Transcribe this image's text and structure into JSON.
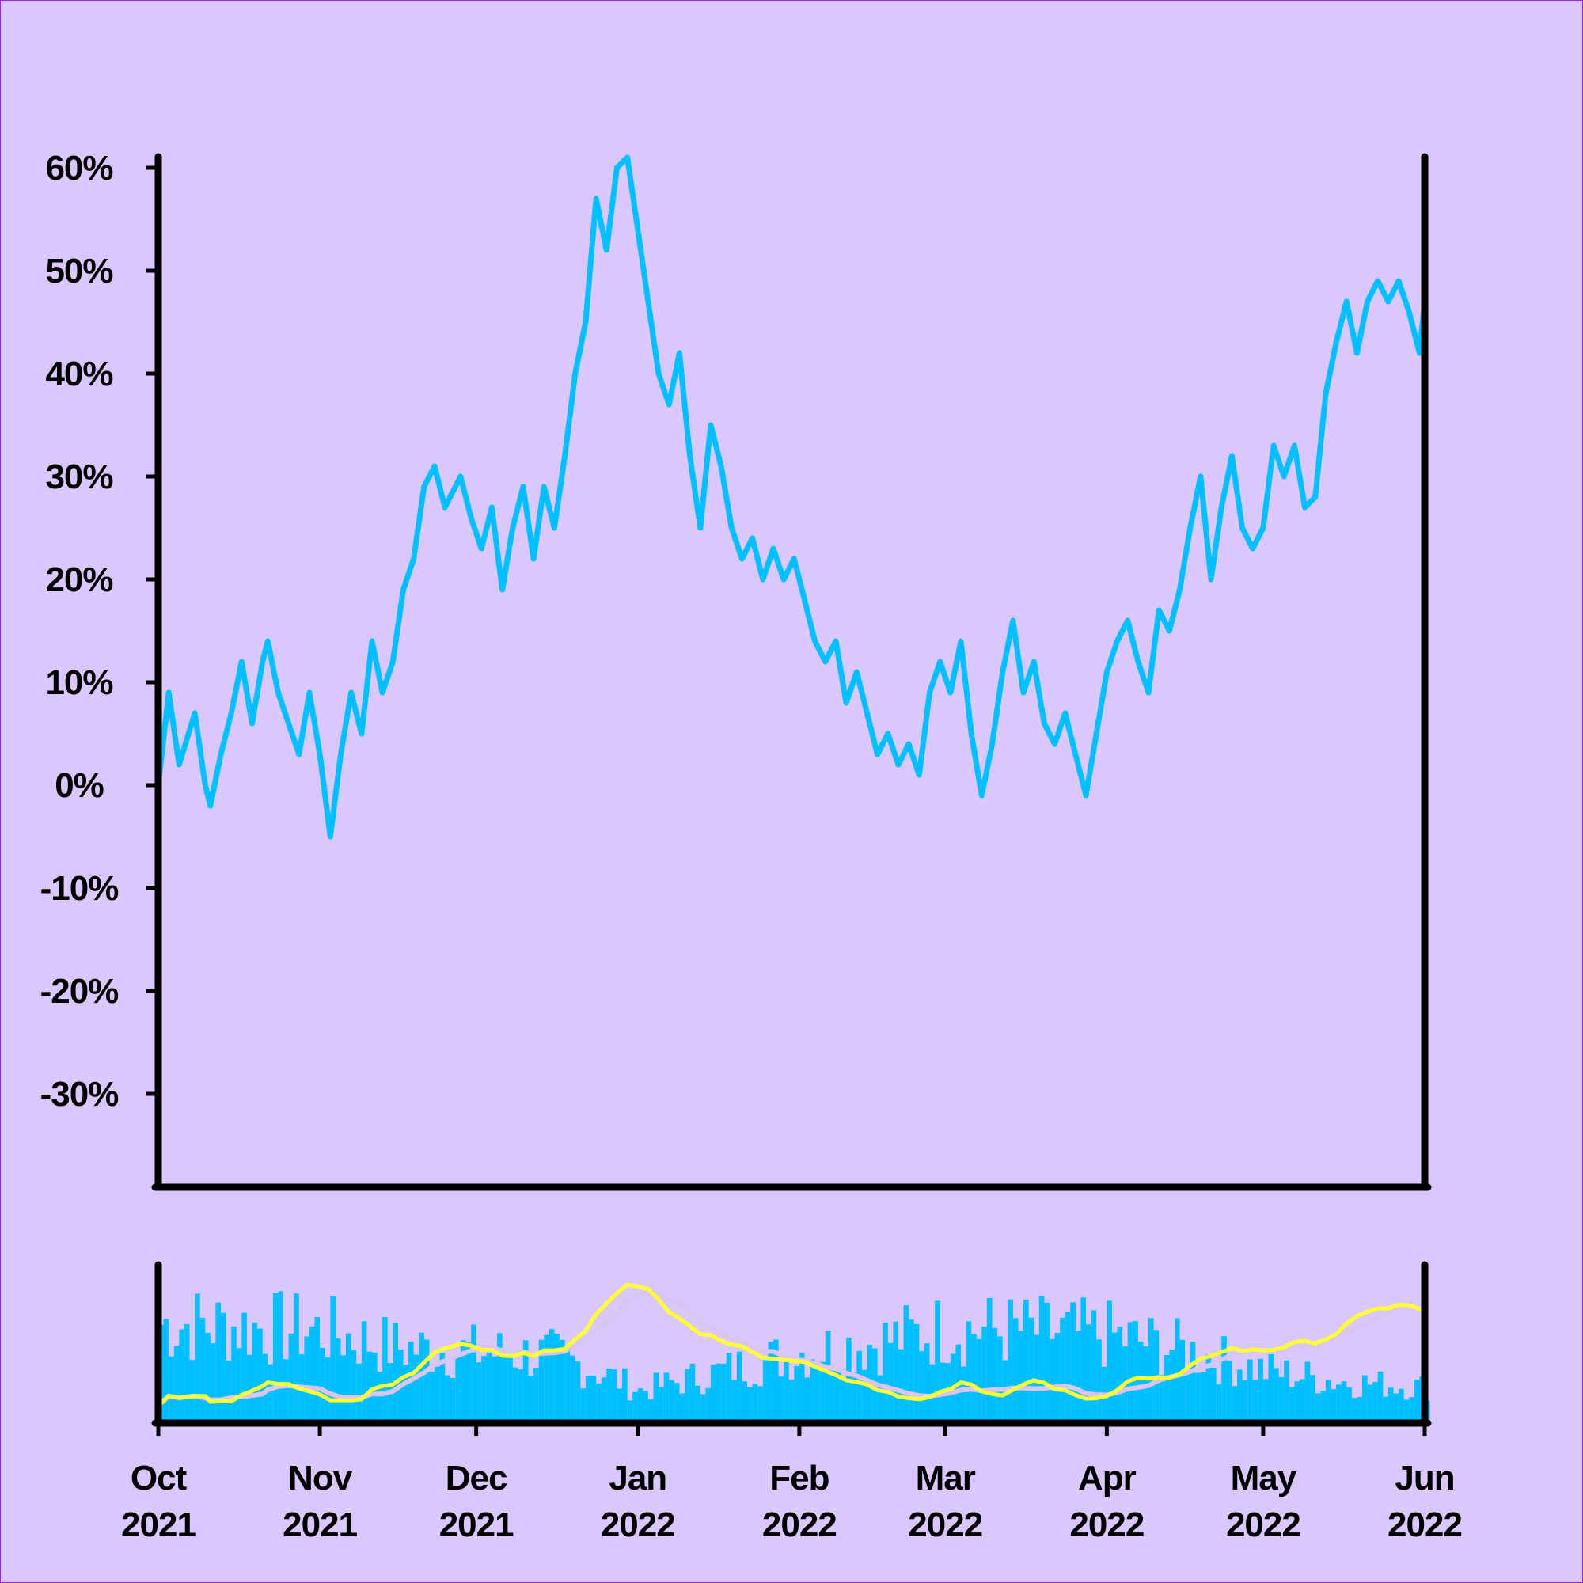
{
  "colors": {
    "background": "#dac8fd",
    "price_line": "#00bfff",
    "volume_bars": "#00bfff",
    "ma_fast": "#ffff33",
    "ma_slow": "#d9c4f2",
    "axis": "#000000"
  },
  "chart_data": [
    {
      "type": "line",
      "title": "",
      "xlabel": "",
      "ylabel": "",
      "ylim": [
        -0.38,
        0.62
      ],
      "y_ticks": [
        {
          "value": 0.6,
          "label": "60%"
        },
        {
          "value": 0.5,
          "label": "50%"
        },
        {
          "value": 0.4,
          "label": "40%"
        },
        {
          "value": 0.3,
          "label": "30%"
        },
        {
          "value": 0.2,
          "label": "20%"
        },
        {
          "value": 0.1,
          "label": "10%"
        },
        {
          "value": 0.0,
          "label": "0%"
        },
        {
          "value": -0.1,
          "label": "-10%"
        },
        {
          "value": -0.2,
          "label": "-20%"
        },
        {
          "value": -0.3,
          "label": "-30%"
        }
      ],
      "grid": false,
      "series": [
        {
          "points": [
            [
              "2021-10-01",
              0.0
            ],
            [
              "2021-10-03",
              0.09
            ],
            [
              "2021-10-05",
              0.02
            ],
            [
              "2021-10-08",
              0.07
            ],
            [
              "2021-10-10",
              0.0
            ],
            [
              "2021-10-11",
              -0.02
            ],
            [
              "2021-10-13",
              0.03
            ],
            [
              "2021-10-15",
              0.07
            ],
            [
              "2021-10-17",
              0.12
            ],
            [
              "2021-10-19",
              0.06
            ],
            [
              "2021-10-21",
              0.12
            ],
            [
              "2021-10-22",
              0.14
            ],
            [
              "2021-10-24",
              0.09
            ],
            [
              "2021-10-26",
              0.06
            ],
            [
              "2021-10-28",
              0.03
            ],
            [
              "2021-10-30",
              0.09
            ],
            [
              "2021-11-01",
              0.03
            ],
            [
              "2021-11-03",
              -0.05
            ],
            [
              "2021-11-05",
              0.03
            ],
            [
              "2021-11-07",
              0.09
            ],
            [
              "2021-11-09",
              0.05
            ],
            [
              "2021-11-11",
              0.14
            ],
            [
              "2021-11-13",
              0.09
            ],
            [
              "2021-11-15",
              0.12
            ],
            [
              "2021-11-17",
              0.19
            ],
            [
              "2021-11-19",
              0.22
            ],
            [
              "2021-11-21",
              0.29
            ],
            [
              "2021-11-23",
              0.31
            ],
            [
              "2021-11-25",
              0.27
            ],
            [
              "2021-11-28",
              0.3
            ],
            [
              "2021-11-30",
              0.26
            ],
            [
              "2021-12-02",
              0.23
            ],
            [
              "2021-12-04",
              0.27
            ],
            [
              "2021-12-06",
              0.19
            ],
            [
              "2021-12-08",
              0.25
            ],
            [
              "2021-12-10",
              0.29
            ],
            [
              "2021-12-12",
              0.22
            ],
            [
              "2021-12-14",
              0.29
            ],
            [
              "2021-12-16",
              0.25
            ],
            [
              "2021-12-18",
              0.32
            ],
            [
              "2021-12-20",
              0.4
            ],
            [
              "2021-12-22",
              0.45
            ],
            [
              "2021-12-24",
              0.57
            ],
            [
              "2021-12-26",
              0.52
            ],
            [
              "2021-12-28",
              0.6
            ],
            [
              "2021-12-30",
              0.61
            ],
            [
              "2022-01-01",
              0.54
            ],
            [
              "2022-01-03",
              0.47
            ],
            [
              "2022-01-05",
              0.4
            ],
            [
              "2022-01-07",
              0.37
            ],
            [
              "2022-01-09",
              0.42
            ],
            [
              "2022-01-11",
              0.32
            ],
            [
              "2022-01-13",
              0.25
            ],
            [
              "2022-01-15",
              0.35
            ],
            [
              "2022-01-17",
              0.31
            ],
            [
              "2022-01-19",
              0.25
            ],
            [
              "2022-01-21",
              0.22
            ],
            [
              "2022-01-23",
              0.24
            ],
            [
              "2022-01-25",
              0.2
            ],
            [
              "2022-01-27",
              0.23
            ],
            [
              "2022-01-29",
              0.2
            ],
            [
              "2022-01-31",
              0.22
            ],
            [
              "2022-02-02",
              0.18
            ],
            [
              "2022-02-04",
              0.14
            ],
            [
              "2022-02-06",
              0.12
            ],
            [
              "2022-02-08",
              0.14
            ],
            [
              "2022-02-10",
              0.08
            ],
            [
              "2022-02-12",
              0.11
            ],
            [
              "2022-02-14",
              0.07
            ],
            [
              "2022-02-16",
              0.03
            ],
            [
              "2022-02-18",
              0.05
            ],
            [
              "2022-02-20",
              0.02
            ],
            [
              "2022-02-22",
              0.04
            ],
            [
              "2022-02-24",
              0.01
            ],
            [
              "2022-02-26",
              0.09
            ],
            [
              "2022-02-28",
              0.12
            ],
            [
              "2022-03-02",
              0.09
            ],
            [
              "2022-03-04",
              0.14
            ],
            [
              "2022-03-06",
              0.05
            ],
            [
              "2022-03-08",
              -0.01
            ],
            [
              "2022-03-10",
              0.04
            ],
            [
              "2022-03-12",
              0.11
            ],
            [
              "2022-03-14",
              0.16
            ],
            [
              "2022-03-16",
              0.09
            ],
            [
              "2022-03-18",
              0.12
            ],
            [
              "2022-03-20",
              0.06
            ],
            [
              "2022-03-22",
              0.04
            ],
            [
              "2022-03-24",
              0.07
            ],
            [
              "2022-03-26",
              0.03
            ],
            [
              "2022-03-28",
              -0.01
            ],
            [
              "2022-03-30",
              0.05
            ],
            [
              "2022-04-01",
              0.11
            ],
            [
              "2022-04-03",
              0.14
            ],
            [
              "2022-04-05",
              0.16
            ],
            [
              "2022-04-07",
              0.12
            ],
            [
              "2022-04-09",
              0.09
            ],
            [
              "2022-04-11",
              0.17
            ],
            [
              "2022-04-13",
              0.15
            ],
            [
              "2022-04-15",
              0.19
            ],
            [
              "2022-04-17",
              0.25
            ],
            [
              "2022-04-19",
              0.3
            ],
            [
              "2022-04-21",
              0.2
            ],
            [
              "2022-04-23",
              0.27
            ],
            [
              "2022-04-25",
              0.32
            ],
            [
              "2022-04-27",
              0.25
            ],
            [
              "2022-04-29",
              0.23
            ],
            [
              "2022-05-01",
              0.25
            ],
            [
              "2022-05-03",
              0.33
            ],
            [
              "2022-05-05",
              0.3
            ],
            [
              "2022-05-07",
              0.33
            ],
            [
              "2022-05-09",
              0.27
            ],
            [
              "2022-05-11",
              0.28
            ],
            [
              "2022-05-13",
              0.38
            ],
            [
              "2022-05-15",
              0.43
            ],
            [
              "2022-05-17",
              0.47
            ],
            [
              "2022-05-19",
              0.42
            ],
            [
              "2022-05-21",
              0.47
            ],
            [
              "2022-05-23",
              0.49
            ],
            [
              "2022-05-25",
              0.47
            ],
            [
              "2022-05-27",
              0.49
            ],
            [
              "2022-05-29",
              0.46
            ],
            [
              "2022-05-31",
              0.42
            ],
            [
              "2022-06-01",
              0.47
            ]
          ]
        }
      ]
    },
    {
      "type": "bar",
      "title": "",
      "xlabel": "",
      "ylabel": "",
      "ylim": [
        0,
        1
      ],
      "volume_profile": [
        [
          "2021-10-01",
          0.82
        ],
        [
          "2021-10-15",
          0.8
        ],
        [
          "2021-11-01",
          0.76
        ],
        [
          "2021-11-15",
          0.62
        ],
        [
          "2021-12-01",
          0.58
        ],
        [
          "2021-12-15",
          0.55
        ],
        [
          "2021-12-25",
          0.4
        ],
        [
          "2022-01-01",
          0.25
        ],
        [
          "2022-01-15",
          0.4
        ],
        [
          "2022-02-01",
          0.58
        ],
        [
          "2022-02-15",
          0.66
        ],
        [
          "2022-03-01",
          0.78
        ],
        [
          "2022-03-15",
          0.76
        ],
        [
          "2022-04-01",
          0.72
        ],
        [
          "2022-04-15",
          0.6
        ],
        [
          "2022-05-01",
          0.42
        ],
        [
          "2022-05-15",
          0.33
        ],
        [
          "2022-06-01",
          0.28
        ]
      ],
      "series": [
        {
          "role": "moving-average-fast"
        },
        {
          "role": "moving-average-slow"
        }
      ],
      "x_ticks": [
        {
          "date": "2021-10-01",
          "month": "Oct",
          "year": "2021"
        },
        {
          "date": "2021-11-01",
          "month": "Nov",
          "year": "2021"
        },
        {
          "date": "2021-12-01",
          "month": "Dec",
          "year": "2021"
        },
        {
          "date": "2022-01-01",
          "month": "Jan",
          "year": "2022"
        },
        {
          "date": "2022-02-01",
          "month": "Feb",
          "year": "2022"
        },
        {
          "date": "2022-03-01",
          "month": "Mar",
          "year": "2022"
        },
        {
          "date": "2022-04-01",
          "month": "Apr",
          "year": "2022"
        },
        {
          "date": "2022-05-01",
          "month": "May",
          "year": "2022"
        },
        {
          "date": "2022-06-01",
          "month": "Jun",
          "year": "2022"
        }
      ]
    }
  ]
}
